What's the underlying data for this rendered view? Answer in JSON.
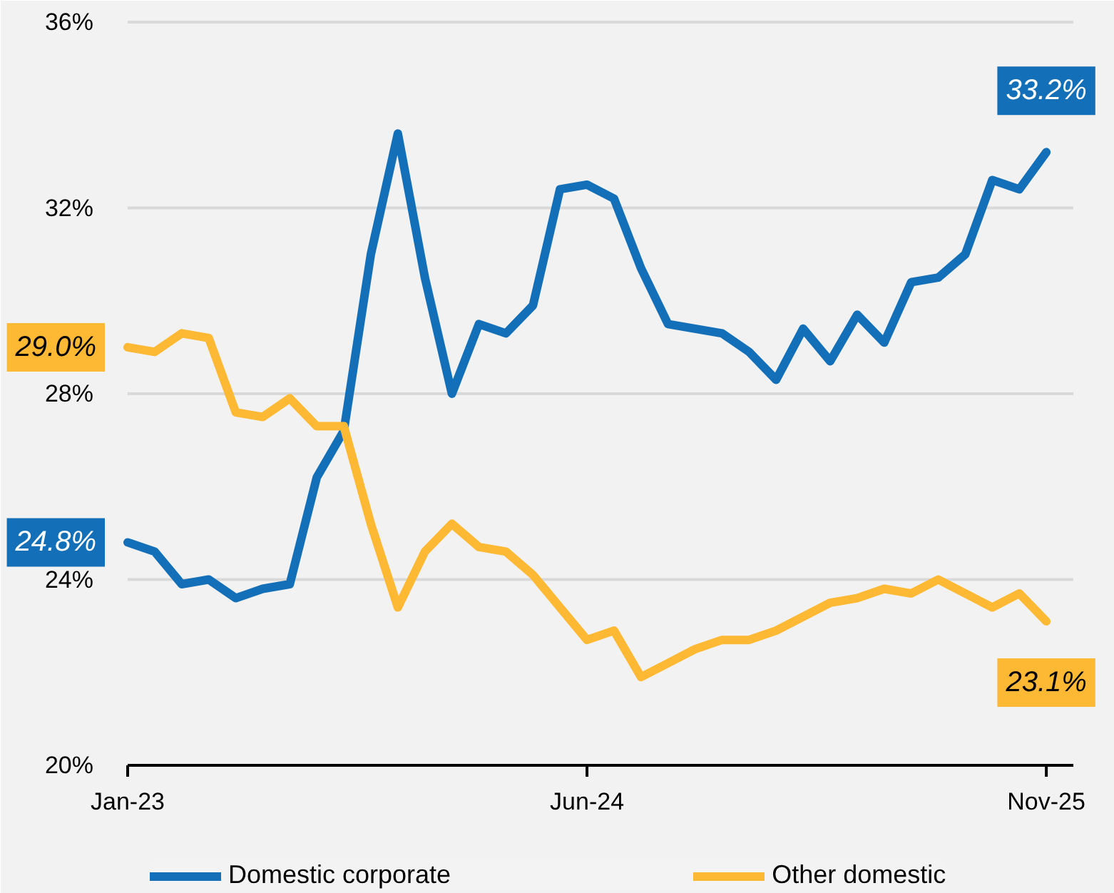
{
  "chart_data": {
    "type": "line",
    "x": [
      "2023-01",
      "2023-02",
      "2023-03",
      "2023-04",
      "2023-05",
      "2023-06",
      "2023-07",
      "2023-08",
      "2023-09",
      "2023-10",
      "2023-11",
      "2023-12",
      "2024-01",
      "2024-02",
      "2024-03",
      "2024-04",
      "2024-05",
      "2024-06",
      "2024-07",
      "2024-08",
      "2024-09",
      "2024-10",
      "2024-11",
      "2024-12",
      "2025-01",
      "2025-02",
      "2025-03",
      "2025-04",
      "2025-05",
      "2025-06",
      "2025-07",
      "2025-08",
      "2025-09",
      "2025-10",
      "2025-11"
    ],
    "series": [
      {
        "name": "Domestic corporate",
        "color": "#136fb8",
        "values": [
          24.8,
          24.6,
          23.9,
          24.0,
          23.6,
          23.8,
          23.9,
          26.2,
          27.2,
          31.0,
          33.6,
          30.5,
          28.0,
          29.5,
          29.3,
          29.9,
          32.4,
          32.5,
          32.2,
          30.7,
          29.5,
          29.4,
          29.3,
          28.9,
          28.3,
          29.4,
          28.7,
          29.7,
          29.1,
          30.4,
          30.5,
          31.0,
          32.6,
          32.4,
          33.2
        ],
        "value_labels": [
          "24.8%",
          null,
          null,
          null,
          null,
          null,
          null,
          null,
          null,
          null,
          null,
          null,
          null,
          null,
          null,
          null,
          null,
          null,
          null,
          null,
          null,
          null,
          null,
          null,
          null,
          null,
          null,
          null,
          null,
          null,
          null,
          null,
          null,
          null,
          "33.2%"
        ]
      },
      {
        "name": "Other domestic",
        "color": "#fdb934",
        "values": [
          29.0,
          28.9,
          29.3,
          29.2,
          27.6,
          27.5,
          27.9,
          27.3,
          27.3,
          25.2,
          23.4,
          24.6,
          25.2,
          24.7,
          24.6,
          24.1,
          23.4,
          22.7,
          22.9,
          21.9,
          22.2,
          22.5,
          22.7,
          22.7,
          22.9,
          23.2,
          23.5,
          23.6,
          23.8,
          23.7,
          24.0,
          23.7,
          23.4,
          23.7,
          23.1
        ],
        "value_labels": [
          "29.0%",
          null,
          null,
          null,
          null,
          null,
          null,
          null,
          null,
          null,
          null,
          null,
          null,
          null,
          null,
          null,
          null,
          null,
          null,
          null,
          null,
          null,
          null,
          null,
          null,
          null,
          null,
          null,
          null,
          null,
          null,
          null,
          null,
          null,
          "23.1%"
        ]
      }
    ],
    "xlim": [
      "2023-01",
      "2025-12"
    ],
    "xticks": [
      {
        "value": "2023-01",
        "label": "Jan-23"
      },
      {
        "value": "2024-06",
        "label": "Jun-24"
      },
      {
        "value": "2025-11",
        "label": "Nov-25"
      }
    ],
    "ylim": [
      20,
      36
    ],
    "yticks": [
      {
        "value": 20,
        "label": "20%"
      },
      {
        "value": 24,
        "label": "24%"
      },
      {
        "value": 28,
        "label": "28%"
      },
      {
        "value": 32,
        "label": "32%"
      },
      {
        "value": 36,
        "label": "36%"
      }
    ],
    "grid": "y",
    "legend": "bottom",
    "marker": "none",
    "line_style": "solid"
  }
}
